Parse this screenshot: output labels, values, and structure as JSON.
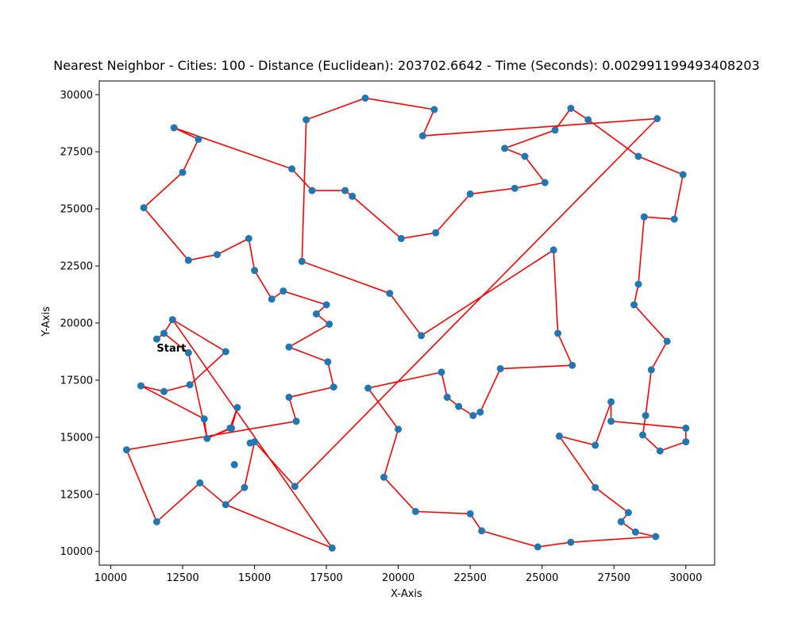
{
  "chart_data": {
    "type": "line",
    "title": "Nearest Neighbor - Cities: 100 - Distance (Euclidean): 203702.6642 - Time (Seconds): 0.002991199493408203",
    "xlabel": "X-Axis",
    "ylabel": "Y-Axis",
    "xlim": [
      9600,
      31000
    ],
    "ylim": [
      9400,
      30600
    ],
    "xticks": [
      10000,
      12500,
      15000,
      17500,
      20000,
      22500,
      25000,
      27500,
      30000
    ],
    "yticks": [
      10000,
      12500,
      15000,
      17500,
      20000,
      22500,
      25000,
      27500,
      30000
    ],
    "grid": false,
    "annotation": "Start",
    "annotation_point": [
      11600,
      18750
    ],
    "point_color": "#1f77b4",
    "line_color": "#ff0000",
    "route": [
      [
        11600,
        19300
      ],
      [
        11850,
        19550
      ],
      [
        12150,
        20150
      ],
      [
        14000,
        18750
      ],
      [
        12750,
        17300
      ],
      [
        11850,
        17000
      ],
      [
        11050,
        17250
      ],
      [
        13250,
        15800
      ],
      [
        13350,
        14950
      ],
      [
        14200,
        15400
      ],
      [
        14400,
        16300
      ],
      [
        14150,
        15400
      ],
      [
        13350,
        14950
      ],
      [
        12700,
        18700
      ],
      [
        11850,
        19550
      ],
      [
        12150,
        20150
      ],
      [
        17700,
        10150
      ],
      [
        14000,
        12050
      ],
      [
        13100,
        13000
      ],
      [
        11600,
        11300
      ],
      [
        10550,
        14450
      ],
      [
        16450,
        15700
      ],
      [
        16200,
        16750
      ],
      [
        17750,
        17200
      ],
      [
        17550,
        18300
      ],
      [
        16200,
        18950
      ],
      [
        17600,
        19950
      ],
      [
        17150,
        20400
      ],
      [
        17500,
        20800
      ],
      [
        16000,
        21400
      ],
      [
        15600,
        21050
      ],
      [
        15000,
        22300
      ],
      [
        14800,
        23700
      ],
      [
        13700,
        23000
      ],
      [
        12700,
        22750
      ],
      [
        11150,
        25050
      ],
      [
        12500,
        26600
      ],
      [
        13050,
        28050
      ],
      [
        12200,
        28550
      ],
      [
        16300,
        26750
      ],
      [
        17000,
        25800
      ],
      [
        18150,
        25800
      ],
      [
        18400,
        25550
      ],
      [
        20100,
        23700
      ],
      [
        21300,
        23950
      ],
      [
        22500,
        25650
      ],
      [
        24050,
        25900
      ],
      [
        25100,
        26150
      ],
      [
        24400,
        27300
      ],
      [
        23700,
        27650
      ],
      [
        25450,
        28450
      ],
      [
        26000,
        29400
      ],
      [
        26600,
        28900
      ],
      [
        28350,
        27300
      ],
      [
        29900,
        26500
      ],
      [
        29600,
        24550
      ],
      [
        28550,
        24650
      ],
      [
        28350,
        21700
      ],
      [
        28200,
        20800
      ],
      [
        29350,
        19200
      ],
      [
        28800,
        17950
      ],
      [
        28600,
        15950
      ],
      [
        28500,
        15100
      ],
      [
        29100,
        14400
      ],
      [
        30000,
        14800
      ],
      [
        30000,
        15400
      ],
      [
        27400,
        15700
      ],
      [
        27400,
        16550
      ],
      [
        26850,
        14650
      ],
      [
        25600,
        15050
      ],
      [
        26850,
        12800
      ],
      [
        28000,
        11700
      ],
      [
        27750,
        11300
      ],
      [
        28250,
        10850
      ],
      [
        28950,
        10650
      ],
      [
        26000,
        10400
      ],
      [
        24850,
        10200
      ],
      [
        22900,
        10900
      ],
      [
        22500,
        11650
      ],
      [
        20600,
        11750
      ],
      [
        19500,
        13250
      ],
      [
        20000,
        15350
      ],
      [
        18950,
        17150
      ],
      [
        21500,
        17850
      ],
      [
        21700,
        16750
      ],
      [
        22100,
        16350
      ],
      [
        22600,
        15950
      ],
      [
        22850,
        16100
      ],
      [
        23550,
        18000
      ],
      [
        26050,
        18150
      ],
      [
        25550,
        19550
      ],
      [
        25400,
        23200
      ],
      [
        20800,
        19450
      ],
      [
        19700,
        21300
      ],
      [
        16650,
        22700
      ],
      [
        16800,
        28900
      ],
      [
        18850,
        29850
      ],
      [
        21250,
        29350
      ],
      [
        20850,
        28200
      ],
      [
        29000,
        28950
      ],
      [
        16400,
        12850
      ],
      [
        15000,
        14800
      ],
      [
        14650,
        12800
      ],
      [
        14000,
        12050
      ]
    ],
    "extra_points": [
      [
        14850,
        14750
      ],
      [
        14300,
        13800
      ]
    ]
  }
}
